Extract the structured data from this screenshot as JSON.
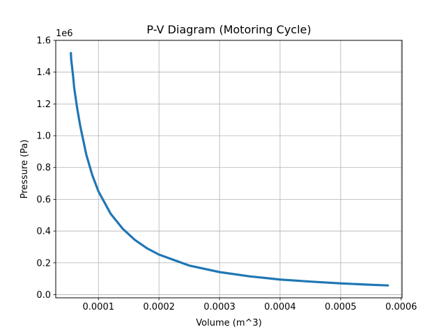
{
  "chart_data": {
    "type": "line",
    "title": "P-V Diagram (Motoring Cycle)",
    "xlabel": "Volume (m^3)",
    "ylabel": "Pressure (Pa)",
    "y_offset_label": "1e6",
    "xlim": [
      2.95e-05,
      0.0006015
    ],
    "ylim": [
      -0.02,
      1.6
    ],
    "x_ticks": [
      0.0001,
      0.0002,
      0.0003,
      0.0004,
      0.0005,
      0.0006
    ],
    "x_tick_labels": [
      "0.0001",
      "0.0002",
      "0.0003",
      "0.0004",
      "0.0005",
      "0.0006"
    ],
    "y_ticks": [
      0.0,
      0.2,
      0.4,
      0.6,
      0.8,
      1.0,
      1.2,
      1.4,
      1.6
    ],
    "y_tick_labels": [
      "0.0",
      "0.2",
      "0.4",
      "0.6",
      "0.8",
      "1.0",
      "1.2",
      "1.4",
      "1.6"
    ],
    "grid": true,
    "series_color": "#1f77b4",
    "series": [
      {
        "x": [
          5.45e-05,
          5.5e-05,
          5.8e-05,
          6e-05,
          6.5e-05,
          7e-05,
          8e-05,
          9e-05,
          0.0001,
          0.00012,
          0.00014,
          0.00016,
          0.00018,
          0.0002,
          0.00025,
          0.0003,
          0.00035,
          0.0004,
          0.00045,
          0.0005,
          0.00055,
          0.000578
        ],
        "y": [
          1.52,
          1.48,
          1.38,
          1.3,
          1.17,
          1.06,
          0.88,
          0.75,
          0.65,
          0.51,
          0.415,
          0.345,
          0.292,
          0.252,
          0.183,
          0.142,
          0.115,
          0.095,
          0.082,
          0.071,
          0.062,
          0.058
        ]
      }
    ]
  }
}
